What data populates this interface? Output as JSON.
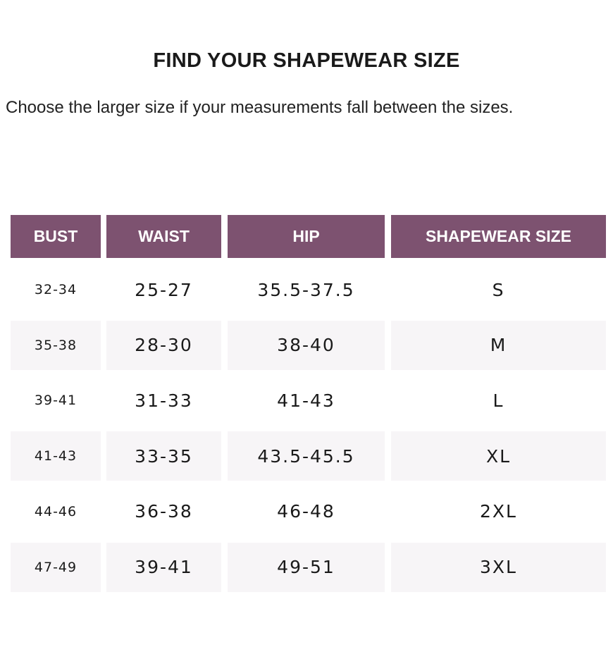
{
  "title": "FIND YOUR SHAPEWEAR SIZE",
  "subtitle": "Choose the larger size if your measurements fall between the sizes.",
  "colors": {
    "header_bg": "#7d5270",
    "row_shade": "#f7f5f7"
  },
  "table": {
    "headers": [
      "BUST",
      "WAIST",
      "HIP",
      "SHAPEWEAR SIZE"
    ],
    "rows": [
      [
        "32-34",
        "25-27",
        "35.5-37.5",
        "S"
      ],
      [
        "35-38",
        "28-30",
        "38-40",
        "M"
      ],
      [
        "39-41",
        "31-33",
        "41-43",
        "L"
      ],
      [
        "41-43",
        "33-35",
        "43.5-45.5",
        "XL"
      ],
      [
        "44-46",
        "36-38",
        "46-48",
        "2XL"
      ],
      [
        "47-49",
        "39-41",
        "49-51",
        "3XL"
      ]
    ]
  }
}
